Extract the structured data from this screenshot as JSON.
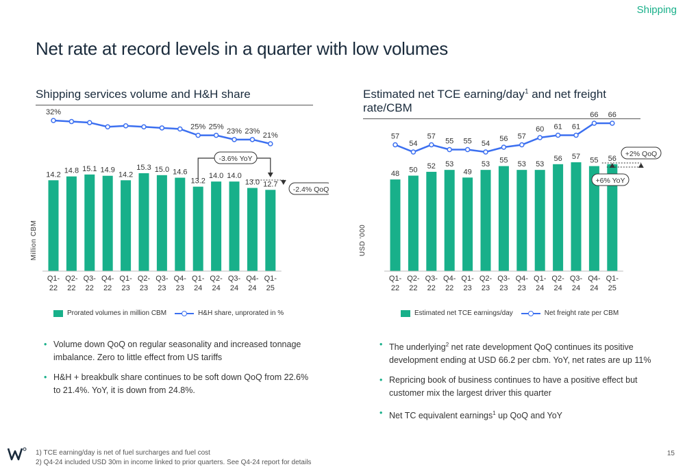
{
  "header": {
    "section": "Shipping",
    "title": "Net rate at record levels in a quarter with low volumes"
  },
  "left": {
    "title": "Shipping services volume and H&H share",
    "legend": {
      "bar": "Prorated volumes in million CBM",
      "line": "H&H share, unprorated in %"
    },
    "bullets": [
      "Volume down QoQ on regular seasonality and increased tonnage imbalance. Zero to little effect from US tariffs",
      "H&H + breakbulk share continues to be soft down QoQ from 22.6% to 21.4%. YoY, it is down from 24.8%."
    ]
  },
  "right": {
    "title_main": "Estimated net TCE earning/day",
    "title_sup": "1",
    "title_rest": " and net freight rate/CBM",
    "legend": {
      "bar": "Estimated net TCE earnings/day",
      "line": "Net freight rate per CBM"
    },
    "bullets": [
      {
        "pre": "The underlying",
        "sup": "2",
        "post": " net rate development QoQ continues its positive development ending at USD 66.2 per cbm. YoY, net rates are up 11%"
      },
      {
        "pre": "Repricing book of business continues to have a positive effect but customer mix the largest driver this quarter",
        "sup": "",
        "post": ""
      },
      {
        "pre": "Net TC equivalent earnings",
        "sup": "1",
        "post": " up QoQ and YoY"
      }
    ]
  },
  "footer": {
    "notes": [
      "1) TCE earning/day is net of fuel surcharges and fuel cost",
      "2) Q4-24 included USD 30m in income linked to prior quarters. See Q4-24 report for details"
    ],
    "page": "15"
  },
  "colors": {
    "bar": "#18b08a",
    "line": "#3b6ff0",
    "accent": "#19b08a"
  },
  "chart_data": [
    {
      "type": "bar",
      "categories": [
        "Q1-22",
        "Q2-22",
        "Q3-22",
        "Q4-22",
        "Q1-23",
        "Q2-23",
        "Q3-23",
        "Q4-23",
        "Q1-24",
        "Q2-24",
        "Q3-24",
        "Q4-24",
        "Q1-25"
      ],
      "ylabel": "Million CBM",
      "series": [
        {
          "name": "Prorated volumes in million CBM",
          "type": "bar",
          "values": [
            14.2,
            14.8,
            15.1,
            14.9,
            14.2,
            15.3,
            15.0,
            14.6,
            13.2,
            14.0,
            14.0,
            13.0,
            12.7
          ],
          "labels": [
            "14.2",
            "14.8",
            "15.1",
            "14.9",
            "14.2",
            "15.3",
            "15.0",
            "14.6",
            "13.2",
            "14.0",
            "14.0",
            "13.0",
            "12.7"
          ]
        },
        {
          "name": "H&H share, unprorated in %",
          "type": "line",
          "values": [
            32,
            31.5,
            31,
            29,
            29.5,
            29,
            28.5,
            28,
            25,
            25,
            23,
            23,
            21
          ],
          "labels": [
            "32%",
            "",
            "",
            "",
            "",
            "",
            "",
            "",
            "25%",
            "25%",
            "23%",
            "23%",
            "21%"
          ]
        }
      ],
      "annotations": [
        "-3.6% YoY",
        "-2.4% QoQ"
      ]
    },
    {
      "type": "bar",
      "categories": [
        "Q1-22",
        "Q2-22",
        "Q3-22",
        "Q4-22",
        "Q1-23",
        "Q2-23",
        "Q3-23",
        "Q4-23",
        "Q1-24",
        "Q2-24",
        "Q3-24",
        "Q4-24",
        "Q1-25"
      ],
      "ylabel": "USD '000",
      "series": [
        {
          "name": "Estimated net TCE earnings/day",
          "type": "bar",
          "values": [
            48,
            50,
            52,
            53,
            49,
            53,
            55,
            53,
            53,
            56,
            57,
            55,
            56
          ],
          "labels": [
            "48",
            "50",
            "52",
            "53",
            "49",
            "53",
            "55",
            "53",
            "53",
            "56",
            "57",
            "55",
            "56"
          ]
        },
        {
          "name": "Net freight rate per CBM",
          "type": "line",
          "values": [
            57,
            54,
            57,
            55,
            55,
            54,
            56,
            57,
            60,
            61,
            61,
            66,
            66
          ],
          "labels": [
            "57",
            "54",
            "57",
            "55",
            "55",
            "54",
            "56",
            "57",
            "60",
            "61",
            "61",
            "66",
            "66"
          ]
        }
      ],
      "annotations": [
        "+2% QoQ",
        "+6% YoY"
      ]
    }
  ]
}
